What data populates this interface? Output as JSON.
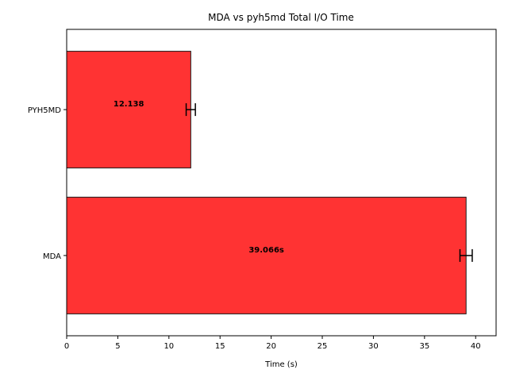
{
  "chart_data": {
    "type": "bar",
    "orientation": "horizontal",
    "title": "MDA vs pyh5md Total I/O Time",
    "xlabel": "Time (s)",
    "ylabel": "",
    "xlim": [
      0,
      42
    ],
    "xticks": [
      0,
      5,
      10,
      15,
      20,
      25,
      30,
      35,
      40
    ],
    "categories": [
      "MDA",
      "PYH5MD"
    ],
    "values": [
      39.066,
      12.138
    ],
    "errors": [
      0.6,
      0.45
    ],
    "data_labels": [
      "39.066s",
      "12.138"
    ],
    "grid": false,
    "colors": {
      "bar_fill": "#ff3333",
      "bar_edge": "#1a1a1a"
    }
  }
}
